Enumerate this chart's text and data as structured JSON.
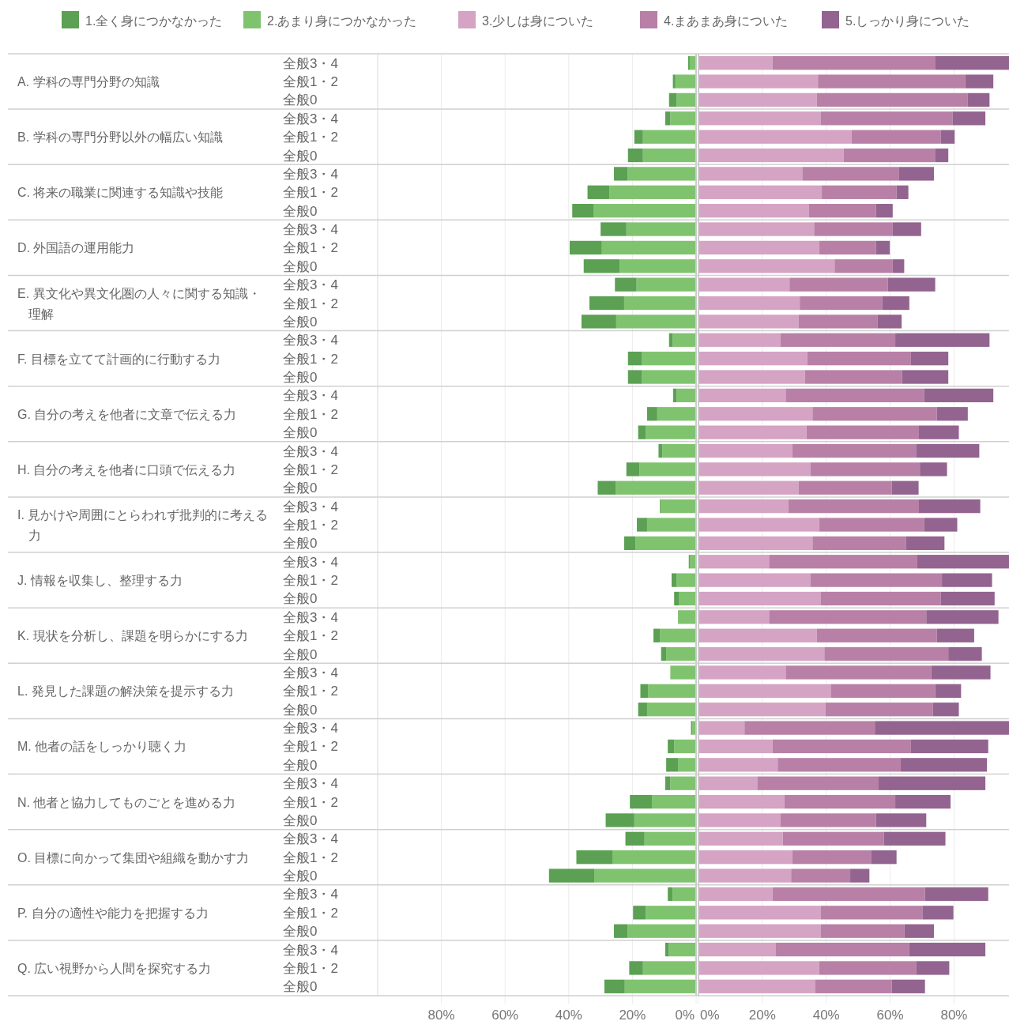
{
  "chart_data": [
    {
      "type": "bar",
      "orientation": "horizontal",
      "stacked": true,
      "grid": "x",
      "legend": "top",
      "categories": [
        "全般3・4",
        "全般1・2",
        "全般0",
        "全般3・4",
        "全般1・2",
        "全般0",
        "全般3・4",
        "全般1・2",
        "全般0",
        "全般3・4",
        "全般1・2",
        "全般0",
        "全般3・4",
        "全般1・2",
        "全般0",
        "全般3・4",
        "全般1・2",
        "全般0",
        "全般3・4",
        "全般1・2",
        "全般0",
        "全般3・4",
        "全般1・2",
        "全般0",
        "全般3・4",
        "全般1・2",
        "全般0",
        "全般3・4",
        "全般1・2",
        "全般0",
        "全般3・4",
        "全般1・2",
        "全般0",
        "全般3・4",
        "全般1・2",
        "全般0",
        "全般3・4",
        "全般1・2",
        "全般0",
        "全般3・4",
        "全般1・2",
        "全般0",
        "全般3・4",
        "全般1・2",
        "全般0",
        "全般3・4",
        "全般1・2",
        "全般0",
        "全般3・4",
        "全般1・2",
        "全般0"
      ],
      "annotations": [
        "A. 学科の専門分野の知識",
        "B. 学科の専門分野以外の幅広い知識",
        "C. 将来の職業に関連する知識や技能",
        "D. 外国語の運用能力",
        "E. 異文化や異文化圏の人々に関する知識・理解",
        "F. 目標を立てて計画的に行動する力",
        "G. 自分の考えを他者に文章で伝える力",
        "H. 自分の考えを他者に口頭で伝える力",
        "I. 見かけや周囲にとらわれず批判的に考える力",
        "J. 情報を収集し、整理する力",
        "K. 現状を分析し、課題を明らかにする力",
        "L. 発見した課題の解決策を提示する力",
        "M. 他者の話をしっかり聴く力",
        "N. 他者と協力してものごとを進める力",
        "O. 目標に向かって集団や組織を動かす力",
        "P. 自分の適性や能力を把握する力",
        "Q. 広い視野から人間を探究する力"
      ],
      "xlim": [
        100,
        0
      ],
      "xticks": [
        {
          "value": 80,
          "label": "80%"
        },
        {
          "value": 60,
          "label": "60%"
        },
        {
          "value": 40,
          "label": "40%"
        },
        {
          "value": 20,
          "label": "20%"
        },
        {
          "value": 0,
          "label": "0%"
        }
      ],
      "series": [
        {
          "name": "2.あまり身につかなかった",
          "color": "#80c36f",
          "values": [
            2.0,
            6.5,
            6.1,
            8.1,
            16.7,
            16.7,
            21.5,
            27.2,
            32.1,
            21.9,
            29.6,
            24.0,
            18.7,
            22.6,
            25.1,
            7.4,
            17.1,
            17.1,
            6.1,
            12.2,
            15.8,
            10.6,
            17.8,
            25.2,
            11.2,
            15.4,
            19.0,
            2.0,
            6.1,
            5.3,
            5.7,
            11.4,
            9.4,
            8.1,
            15.1,
            15.4,
            1.2,
            6.9,
            5.7,
            8.1,
            13.9,
            19.4,
            16.2,
            26.3,
            32.0,
            7.4,
            15.8,
            21.5,
            8.6,
            16.7,
            22.4
          ]
        },
        {
          "name": "1.全く身につかなかった",
          "color": "#5ba053",
          "values": [
            0.5,
            0.8,
            2.4,
            1.6,
            2.7,
            4.7,
            4.3,
            6.9,
            6.8,
            8.1,
            10.1,
            11.3,
            6.8,
            10.9,
            10.9,
            1.1,
            4.3,
            4.3,
            1.1,
            3.2,
            2.4,
            1.2,
            4.1,
            5.7,
            0.2,
            3.2,
            3.6,
            0.3,
            1.6,
            1.6,
            0,
            2.0,
            1.6,
            0,
            2.4,
            2.8,
            0.4,
            2.0,
            3.7,
            1.6,
            6.9,
            9.0,
            6.0,
            11.3,
            14.2,
            1.5,
            4.0,
            4.3,
            1.1,
            4.3,
            6.4
          ]
        }
      ]
    },
    {
      "type": "bar",
      "orientation": "horizontal",
      "stacked": true,
      "grid": "x",
      "legend": "top",
      "tick_labels": "x",
      "categories": [
        null,
        null,
        null,
        null,
        null,
        null,
        null,
        null,
        null,
        null,
        null,
        null,
        null,
        null,
        null,
        null,
        null,
        null,
        null,
        null,
        null,
        null,
        null,
        null,
        null,
        null,
        null,
        null,
        null,
        null,
        null,
        null,
        null,
        null,
        null,
        null,
        null,
        null,
        null,
        null,
        null,
        null,
        null,
        null,
        null,
        null,
        null,
        null,
        null,
        null,
        null
      ],
      "xlim": [
        0,
        97.2
      ],
      "xticks": [
        {
          "value": 0,
          "label": "0%"
        },
        {
          "value": 20,
          "label": "20%"
        },
        {
          "value": 40,
          "label": "40%"
        },
        {
          "value": 60,
          "label": "60%"
        },
        {
          "value": 80,
          "label": "80%"
        }
      ],
      "series": [
        {
          "name": "3.少しは身についた",
          "color": "#d5a3c4",
          "values": [
            23.2,
            37.4,
            37.0,
            38.2,
            47.9,
            45.4,
            32.5,
            38.6,
            34.5,
            36.2,
            37.8,
            42.6,
            28.5,
            31.7,
            31.3,
            25.7,
            34.1,
            33.3,
            27.3,
            35.7,
            33.8,
            29.4,
            35.0,
            31.3,
            28.1,
            37.8,
            35.7,
            22.1,
            35.0,
            38.2,
            22.1,
            37.0,
            39.4,
            27.3,
            41.4,
            39.8,
            14.4,
            23.2,
            24.8,
            18.4,
            26.9,
            25.7,
            26.4,
            29.4,
            29.0,
            23.2,
            38.2,
            38.2,
            24.1,
            37.8,
            36.6
          ]
        },
        {
          "name": "4.まあまあ身についた",
          "color": "#b880a6",
          "values": [
            51.0,
            46.1,
            47.3,
            41.3,
            27.9,
            28.8,
            30.3,
            23.4,
            21.1,
            24.6,
            17.8,
            18.2,
            30.8,
            25.9,
            24.7,
            35.9,
            32.4,
            30.4,
            43.3,
            38.9,
            35.2,
            38.7,
            34.3,
            29.2,
            40.9,
            32.8,
            29.2,
            46.4,
            41.2,
            37.6,
            49.2,
            37.6,
            38.8,
            45.6,
            32.7,
            33.6,
            40.8,
            43.3,
            38.5,
            38.0,
            34.7,
            29.9,
            31.6,
            24.6,
            18.5,
            47.7,
            31.9,
            26.3,
            41.9,
            30.3,
            23.9
          ]
        },
        {
          "name": "5.しっかり身についた",
          "color": "#93648f",
          "values": [
            23.0,
            8.8,
            6.8,
            10.3,
            4.4,
            4.0,
            10.9,
            3.7,
            5.2,
            8.9,
            4.3,
            3.6,
            14.8,
            8.4,
            7.6,
            29.5,
            11.7,
            14.5,
            21.7,
            9.7,
            12.5,
            19.8,
            8.5,
            8.4,
            19.2,
            10.4,
            12.1,
            28.7,
            15.7,
            16.9,
            22.6,
            11.7,
            10.5,
            18.5,
            8.1,
            8.1,
            42.0,
            24.2,
            27.0,
            33.4,
            17.3,
            15.7,
            19.3,
            8.0,
            6.0,
            19.8,
            9.7,
            9.2,
            23.8,
            10.4,
            10.4
          ]
        }
      ]
    }
  ]
}
